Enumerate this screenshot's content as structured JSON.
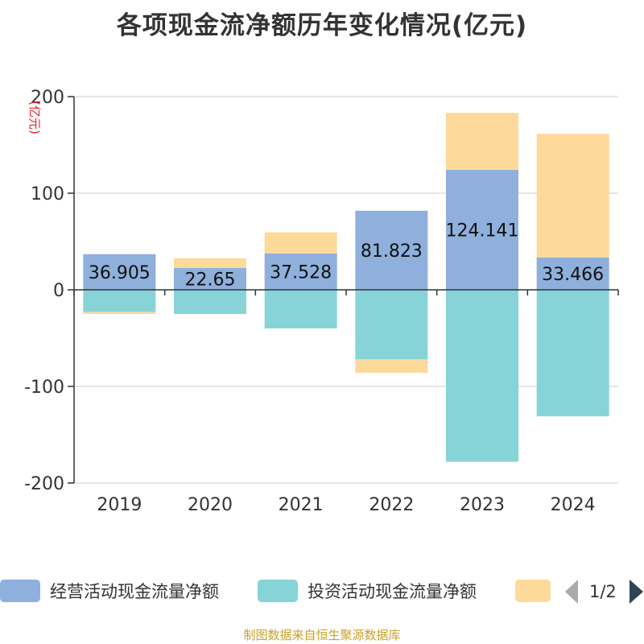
{
  "title": "各项现金流净额历年变化情况(亿元)",
  "footer": "制图数据来自恒生聚源数据库",
  "chart_data": {
    "type": "bar",
    "stacked": true,
    "categories": [
      "2019",
      "2020",
      "2021",
      "2022",
      "2023",
      "2024"
    ],
    "ylabel": "(亿元)",
    "ylim": [
      -200,
      200
    ],
    "yticks": [
      -200,
      -100,
      0,
      100,
      200
    ],
    "grid": true,
    "series": [
      {
        "name": "经营活动现金流量净额",
        "color": "#8FB0DC",
        "values": [
          36.905,
          22.65,
          37.528,
          81.823,
          124.141,
          33.466
        ],
        "labels": [
          "36.905",
          "22.65",
          "37.528",
          "81.823",
          "124.141",
          "33.466"
        ]
      },
      {
        "name": "投资活动现金流量净额",
        "color": "#86D4D8",
        "values": [
          -23,
          -25,
          -40,
          -72,
          -178,
          -131
        ]
      },
      {
        "name": "",
        "color": "#FDD99A",
        "values": [
          -2,
          10,
          22,
          -14,
          59,
          128
        ]
      }
    ]
  },
  "legend": {
    "items": [
      {
        "label": "经营活动现金流量净额",
        "color": "#8FB0DC"
      },
      {
        "label": "投资活动现金流量净额",
        "color": "#86D4D8"
      },
      {
        "label": "",
        "color": "#FDD99A"
      }
    ],
    "page_indicator": "1/2"
  }
}
